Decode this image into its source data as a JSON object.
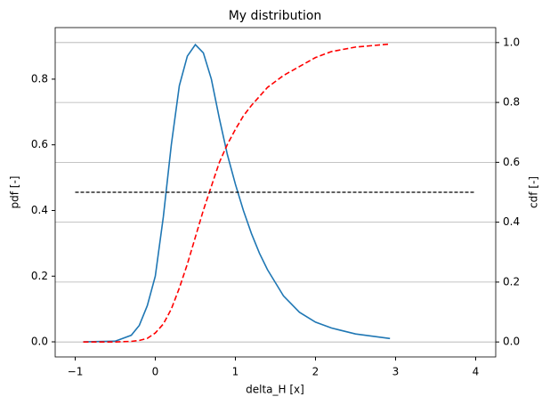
{
  "chart_data": {
    "type": "line",
    "title": "My distribution",
    "x_label": "delta_H [x]",
    "y_label": "pdf [-]",
    "y2_label": "cdf [-]",
    "xlim": [
      -1.25,
      4.25
    ],
    "xticks": [
      {
        "value": -1,
        "label": "−1"
      },
      0,
      1,
      2,
      3,
      4
    ],
    "ylim": [
      -0.046,
      0.957
    ],
    "yticks": [
      {
        "value": 0,
        "label": "0.0"
      },
      0.2,
      0.4,
      0.6,
      0.8
    ],
    "y_color": "#1f77b4",
    "y2lim": [
      -0.05,
      1.05
    ],
    "y2ticks": [
      {
        "value": 0,
        "label": "0.0"
      },
      0.2,
      0.4,
      0.6,
      0.8,
      {
        "value": 1,
        "label": "1.0"
      }
    ],
    "y2_color": "#d62728",
    "grid": "y2",
    "series": [
      {
        "color": "#1f77b4",
        "style": "solid",
        "axis": "y",
        "x": [
          -0.9,
          -0.5,
          -0.3,
          -0.2,
          -0.1,
          0,
          0.1,
          0.2,
          0.3,
          0.4,
          0.5,
          0.6,
          0.7,
          0.8,
          0.9,
          1.0,
          1.1,
          1.2,
          1.3,
          1.4,
          1.5,
          1.6,
          1.8,
          2.0,
          2.2,
          2.5,
          2.93
        ],
        "values": [
          0,
          0.002,
          0.02,
          0.05,
          0.11,
          0.2,
          0.38,
          0.6,
          0.78,
          0.87,
          0.905,
          0.88,
          0.8,
          0.68,
          0.57,
          0.48,
          0.4,
          0.33,
          0.27,
          0.22,
          0.18,
          0.14,
          0.09,
          0.06,
          0.042,
          0.024,
          0.01
        ]
      },
      {
        "color": "#ff0000",
        "style": "dashed",
        "axis": "y2",
        "x": [
          -0.9,
          -0.5,
          -0.3,
          -0.2,
          -0.1,
          0,
          0.1,
          0.2,
          0.3,
          0.4,
          0.5,
          0.6,
          0.7,
          0.8,
          0.9,
          1.0,
          1.1,
          1.2,
          1.3,
          1.4,
          1.5,
          1.6,
          1.8,
          2.0,
          2.2,
          2.5,
          2.93
        ],
        "values": [
          0,
          0,
          0.002,
          0.005,
          0.012,
          0.03,
          0.06,
          0.11,
          0.18,
          0.26,
          0.35,
          0.44,
          0.52,
          0.6,
          0.66,
          0.71,
          0.755,
          0.79,
          0.82,
          0.85,
          0.87,
          0.89,
          0.92,
          0.95,
          0.97,
          0.985,
          0.995
        ]
      },
      {
        "color": "#000000",
        "style": "dashed",
        "axis": "y2",
        "x": [
          -1,
          4
        ],
        "values": [
          0.5,
          0.5
        ]
      }
    ]
  }
}
